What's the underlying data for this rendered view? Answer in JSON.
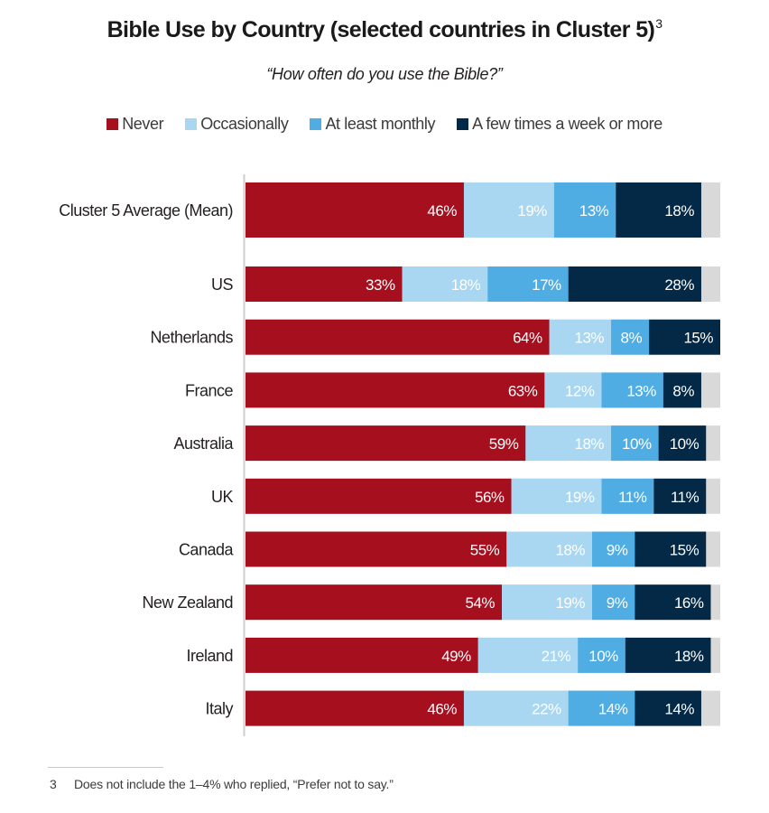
{
  "chart_data": {
    "type": "bar",
    "orientation": "horizontal",
    "stacked": true,
    "title": "Bible Use by Country (selected countries in Cluster 5)",
    "title_footnote_ref": "3",
    "subtitle": "“How often do you use the Bible?”",
    "xlabel": "",
    "ylabel": "",
    "xlim": [
      0,
      100
    ],
    "grid": false,
    "legend_position": "top",
    "remainder_color": "#d9d9d9",
    "categories": [
      "Cluster 5 Average (Mean)",
      "US",
      "Netherlands",
      "France",
      "Australia",
      "UK",
      "Canada",
      "New Zealand",
      "Ireland",
      "Italy"
    ],
    "series": [
      {
        "name": "Never",
        "color": "#a50f1e",
        "label_color": "#ffffff",
        "values": [
          46,
          33,
          64,
          63,
          59,
          56,
          55,
          54,
          49,
          46
        ]
      },
      {
        "name": "Occasionally",
        "color": "#a9d7f2",
        "label_color": "#ffffff",
        "values": [
          19,
          18,
          13,
          12,
          18,
          19,
          18,
          19,
          21,
          22
        ]
      },
      {
        "name": "At least monthly",
        "color": "#4fade3",
        "label_color": "#ffffff",
        "values": [
          13,
          17,
          8,
          13,
          10,
          11,
          9,
          9,
          10,
          14
        ]
      },
      {
        "name": "A few times a week or more",
        "color": "#032947",
        "label_color": "#ffffff",
        "values": [
          18,
          28,
          15,
          8,
          10,
          11,
          15,
          16,
          18,
          14
        ]
      }
    ],
    "value_label_suffix": "%"
  },
  "footnote": {
    "number": "3",
    "text": "Does not include the 1–4% who replied, “Prefer not to say.”"
  }
}
